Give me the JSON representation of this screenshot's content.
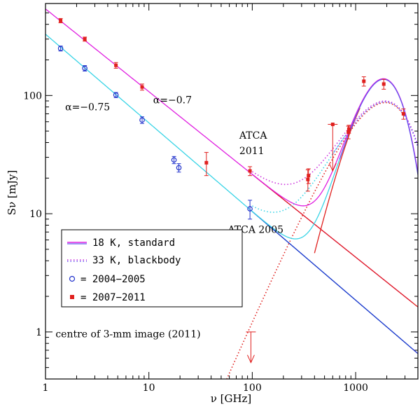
{
  "chart_data": {
    "type": "scatter",
    "title": "",
    "xlabel": "ν [GHz]",
    "ylabel": "Sν [mJy]",
    "xscale": "log",
    "yscale": "log",
    "xlim": [
      1,
      4000
    ],
    "ylim": [
      0.4,
      600
    ],
    "x_ticks": [
      1,
      10,
      100,
      1000
    ],
    "x_tick_labels": [
      "1",
      "10",
      "100",
      "1000"
    ],
    "y_ticks": [
      1,
      10,
      100
    ],
    "y_tick_labels": [
      "1",
      "10",
      "100"
    ],
    "colors": {
      "magenta": "#e01ee0",
      "cyan": "#39d4e6",
      "blue": "#2233cc",
      "red": "#e0201e",
      "magenta_dot": "#cc33dd",
      "blue_dot": "#6655ee"
    },
    "series": [
      {
        "name": "2004-2005",
        "marker": "open-circle",
        "color": "#2233cc",
        "points": [
          {
            "x": 1.4,
            "y": 250,
            "err": 12
          },
          {
            "x": 2.4,
            "y": 170,
            "err": 9
          },
          {
            "x": 4.8,
            "y": 101,
            "err": 5
          },
          {
            "x": 8.6,
            "y": 62,
            "err": 4
          },
          {
            "x": 17.5,
            "y": 28.5,
            "err": 2
          },
          {
            "x": 19.5,
            "y": 24.5,
            "err": 2
          },
          {
            "x": 95,
            "y": 11,
            "err": 2
          }
        ]
      },
      {
        "name": "2007-2011",
        "marker": "filled-square",
        "color": "#e0201e",
        "points": [
          {
            "x": 1.4,
            "y": 430,
            "err": 18
          },
          {
            "x": 2.4,
            "y": 300,
            "err": 12
          },
          {
            "x": 4.8,
            "y": 180,
            "err": 10
          },
          {
            "x": 8.6,
            "y": 118,
            "err": 7
          },
          {
            "x": 36,
            "y": 27,
            "err": 6
          },
          {
            "x": 95,
            "y": 23,
            "err": 2
          },
          {
            "x": 345,
            "y": 19.5,
            "err": 4
          },
          {
            "x": 350,
            "y": 21,
            "err": 3
          },
          {
            "x": 600,
            "y": 57,
            "err": 0
          },
          {
            "x": 850,
            "y": 49,
            "err": 6
          },
          {
            "x": 860,
            "y": 52,
            "err": 4
          },
          {
            "x": 1200,
            "y": 132,
            "err": 12
          },
          {
            "x": 1870,
            "y": 125,
            "err": 12
          },
          {
            "x": 2900,
            "y": 70,
            "err": 7
          }
        ]
      }
    ],
    "upper_limits": [
      {
        "x": 600,
        "y": 57,
        "to": 23,
        "color": "#e0201e"
      },
      {
        "x": 97,
        "y": 1.0,
        "to": 0.55,
        "color": "#e0201e"
      }
    ],
    "model_curves": [
      {
        "name": "power law α=−0.7 (magenta)",
        "color": "#e01ee0",
        "style": "solid",
        "kind": "powerlaw",
        "A": 540,
        "alpha": -0.7,
        "range": [
          1,
          3500
        ]
      },
      {
        "name": "power law α=−0.75 (cyan)",
        "color": "#39d4e6",
        "style": "solid",
        "kind": "powerlaw",
        "A": 330,
        "alpha": -0.75,
        "range": [
          1,
          3500
        ]
      },
      {
        "name": "synchrotron continuation (red)",
        "color": "#e0201e",
        "style": "solid",
        "kind": "powerlaw",
        "A": 540,
        "alpha": -0.7,
        "range": [
          100,
          4000
        ]
      },
      {
        "name": "synchrotron continuation (blue)",
        "color": "#2233cc",
        "style": "solid",
        "kind": "powerlaw",
        "A": 330,
        "alpha": -0.75,
        "range": [
          100,
          4000
        ]
      },
      {
        "name": "dust 18 K standard (red rising)",
        "color": "#e0201e",
        "style": "solid",
        "kind": "dust",
        "T": 18,
        "beta": 2,
        "peak": 1620,
        "norm": 130,
        "range": [
          400,
          1100
        ]
      },
      {
        "name": "dust 33 K blackbody (red dotted)",
        "color": "#e0201e",
        "style": "dotted",
        "kind": "dust",
        "T": 33,
        "beta": 0,
        "peak": 1870,
        "norm": 87,
        "range": [
          55,
          3000
        ]
      },
      {
        "name": "18 K standard total (magenta)",
        "color": "#e01ee0",
        "style": "solid",
        "kind": "sum",
        "A": 540,
        "alpha": -0.7,
        "T": 18,
        "beta": 2,
        "peak": 1620,
        "norm": 130,
        "range": [
          100,
          4000
        ]
      },
      {
        "name": "18 K standard total (cyan)",
        "color": "#39d4e6",
        "style": "solid",
        "kind": "sum",
        "A": 330,
        "alpha": -0.75,
        "T": 18,
        "beta": 2,
        "peak": 1620,
        "norm": 130,
        "range": [
          100,
          1000
        ]
      },
      {
        "name": "18 K standard total (blue)",
        "color": "#6655ee",
        "style": "solid",
        "kind": "sum",
        "A": 330,
        "alpha": -0.75,
        "T": 18,
        "beta": 2,
        "peak": 1620,
        "norm": 130,
        "range": [
          700,
          4000
        ]
      },
      {
        "name": "33 K blackbody total (magenta dotted)",
        "color": "#cc33dd",
        "style": "dotted",
        "kind": "sum",
        "A": 540,
        "alpha": -0.7,
        "T": 33,
        "beta": 0,
        "peak": 1870,
        "norm": 87,
        "range": [
          100,
          4000
        ]
      },
      {
        "name": "33 K blackbody total (cyan dotted)",
        "color": "#39d4e6",
        "style": "dotted",
        "kind": "sum",
        "A": 330,
        "alpha": -0.75,
        "T": 33,
        "beta": 0,
        "peak": 1870,
        "norm": 87,
        "range": [
          100,
          800
        ]
      },
      {
        "name": "33 K blackbody total (blue dotted)",
        "color": "#6655ee",
        "style": "dotted",
        "kind": "sum",
        "A": 330,
        "alpha": -0.75,
        "T": 33,
        "beta": 0,
        "peak": 1870,
        "norm": 87,
        "range": [
          600,
          4000
        ]
      }
    ],
    "annotations": [
      {
        "text": "α=−0.75",
        "x": 1.55,
        "y": 75
      },
      {
        "text": "α=−0.7",
        "x": 11,
        "y": 86
      },
      {
        "text": "ATCA",
        "x": 75,
        "y": 43
      },
      {
        "text": "2011",
        "x": 75,
        "y": 32
      },
      {
        "text": "ATCA 2005",
        "x": 58,
        "y": 6.9
      },
      {
        "text": "centre of 3-mm image (2011)",
        "x": 1.25,
        "y": 0.9
      }
    ],
    "legend": {
      "position": "bottom-left",
      "entries": [
        {
          "label": "18 K, standard",
          "symbol": "solid-line"
        },
        {
          "label": "33 K, blackbody",
          "symbol": "dotted-line"
        },
        {
          "label": "= 2004−2005",
          "symbol": "open-circle"
        },
        {
          "label": "= 2007−2011",
          "symbol": "filled-square"
        }
      ]
    }
  }
}
